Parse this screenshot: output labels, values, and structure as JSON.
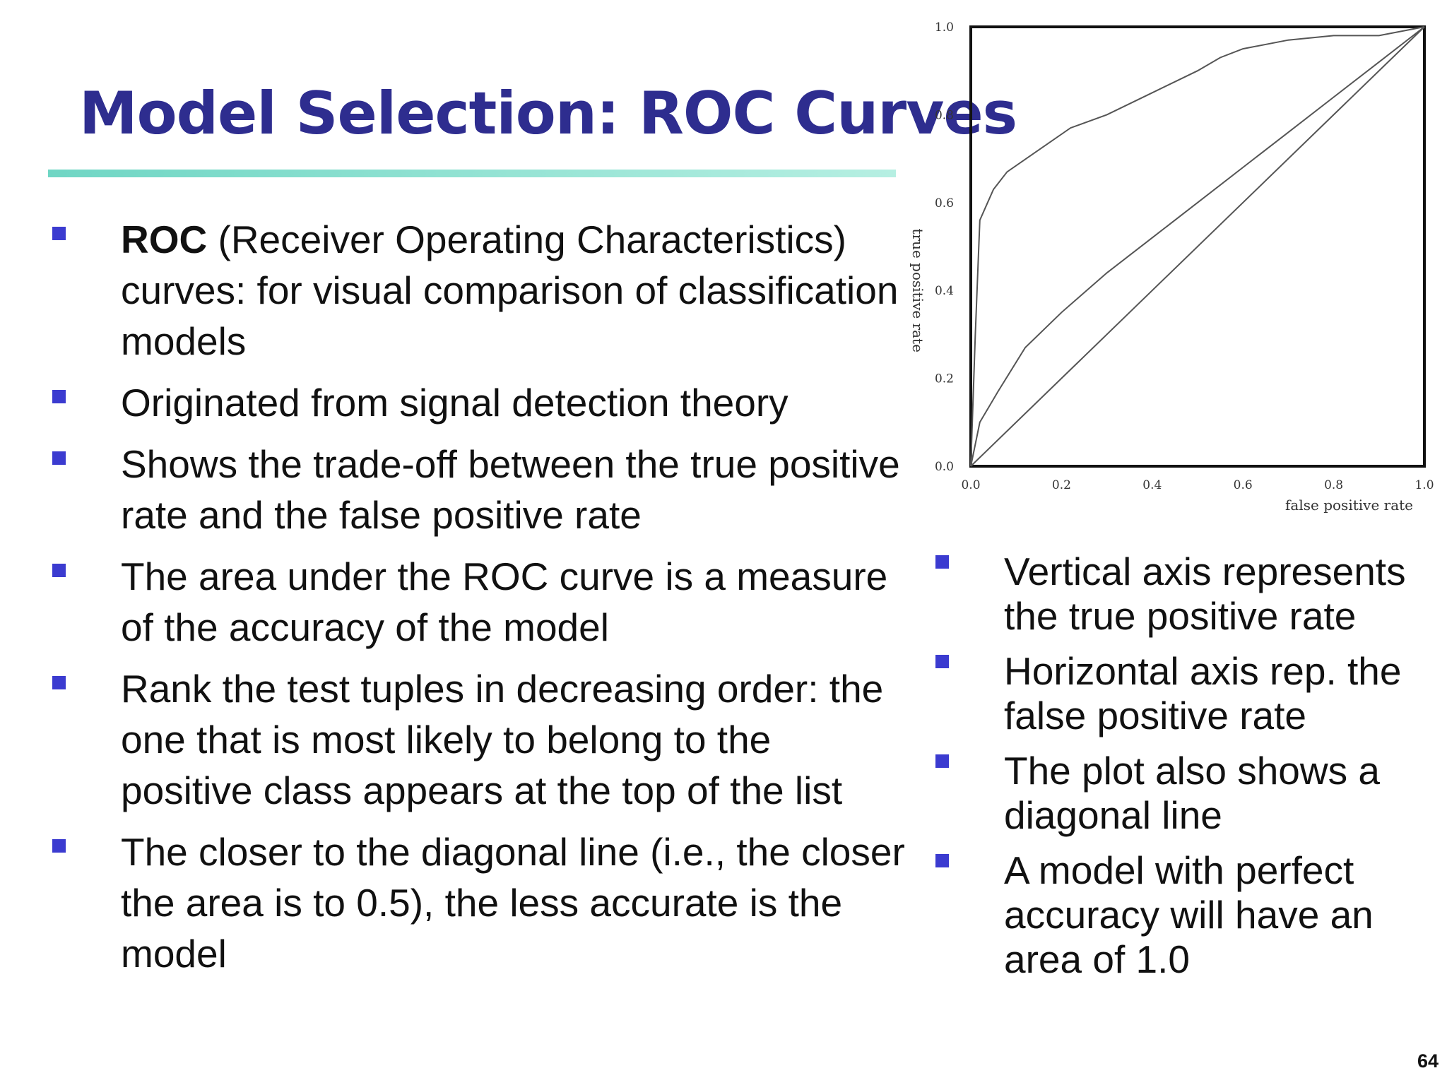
{
  "slide": {
    "title": "Model Selection: ROC Curves",
    "page_number": "64"
  },
  "left_bullets": [
    {
      "bold": "ROC",
      "text": " (Receiver Operating Characteristics) curves: for visual comparison of classification models"
    },
    {
      "bold": "",
      "text": "Originated from signal detection theory"
    },
    {
      "bold": "",
      "text": "Shows the trade-off between the true positive rate and the false positive rate"
    },
    {
      "bold": "",
      "text": "The area under the ROC curve is a measure of the accuracy of the model"
    },
    {
      "bold": "",
      "text": "Rank the test tuples in decreasing order: the one that is most likely to belong to the positive class appears at the top of the list"
    },
    {
      "bold": "",
      "text": "The closer to the diagonal line (i.e., the closer the area is to 0.5), the less accurate is the model"
    }
  ],
  "right_bullets": [
    "Vertical axis represents the true positive rate",
    "Horizontal axis rep. the false positive rate",
    "The plot also shows a diagonal line",
    "A model with perfect accuracy will have an area of 1.0"
  ],
  "colors": {
    "title": "#2e2d8f",
    "bullet_marker": "#3b3bd0",
    "rule_start": "#6fd6c4",
    "rule_end": "#b6efe2"
  },
  "chart_data": {
    "type": "line",
    "title": "",
    "xlabel": "false positive rate",
    "ylabel": "true positive rate",
    "xlim": [
      0,
      1
    ],
    "ylim": [
      0,
      1
    ],
    "x_ticks": [
      "0.0",
      "0.2",
      "0.4",
      "0.6",
      "0.8",
      "1.0"
    ],
    "y_ticks": [
      "0.0",
      "0.2",
      "0.4",
      "0.6",
      "0.8",
      "1.0"
    ],
    "grid": false,
    "legend": "none",
    "series": [
      {
        "points": [
          [
            0,
            0
          ],
          [
            0.01,
            0.3
          ],
          [
            0.02,
            0.56
          ],
          [
            0.05,
            0.63
          ],
          [
            0.08,
            0.67
          ],
          [
            0.15,
            0.72
          ],
          [
            0.22,
            0.77
          ],
          [
            0.3,
            0.8
          ],
          [
            0.4,
            0.85
          ],
          [
            0.5,
            0.9
          ],
          [
            0.55,
            0.93
          ],
          [
            0.6,
            0.95
          ],
          [
            0.7,
            0.97
          ],
          [
            0.8,
            0.98
          ],
          [
            0.9,
            0.98
          ],
          [
            1,
            1
          ]
        ]
      },
      {
        "points": [
          [
            0,
            0
          ],
          [
            0.02,
            0.1
          ],
          [
            0.06,
            0.17
          ],
          [
            0.12,
            0.27
          ],
          [
            0.2,
            0.35
          ],
          [
            0.3,
            0.44
          ],
          [
            0.4,
            0.52
          ],
          [
            0.5,
            0.6
          ],
          [
            0.6,
            0.68
          ],
          [
            0.7,
            0.76
          ],
          [
            0.8,
            0.84
          ],
          [
            0.9,
            0.92
          ],
          [
            1,
            1
          ]
        ]
      },
      {
        "points": [
          [
            0,
            0
          ],
          [
            1,
            1
          ]
        ]
      }
    ]
  }
}
